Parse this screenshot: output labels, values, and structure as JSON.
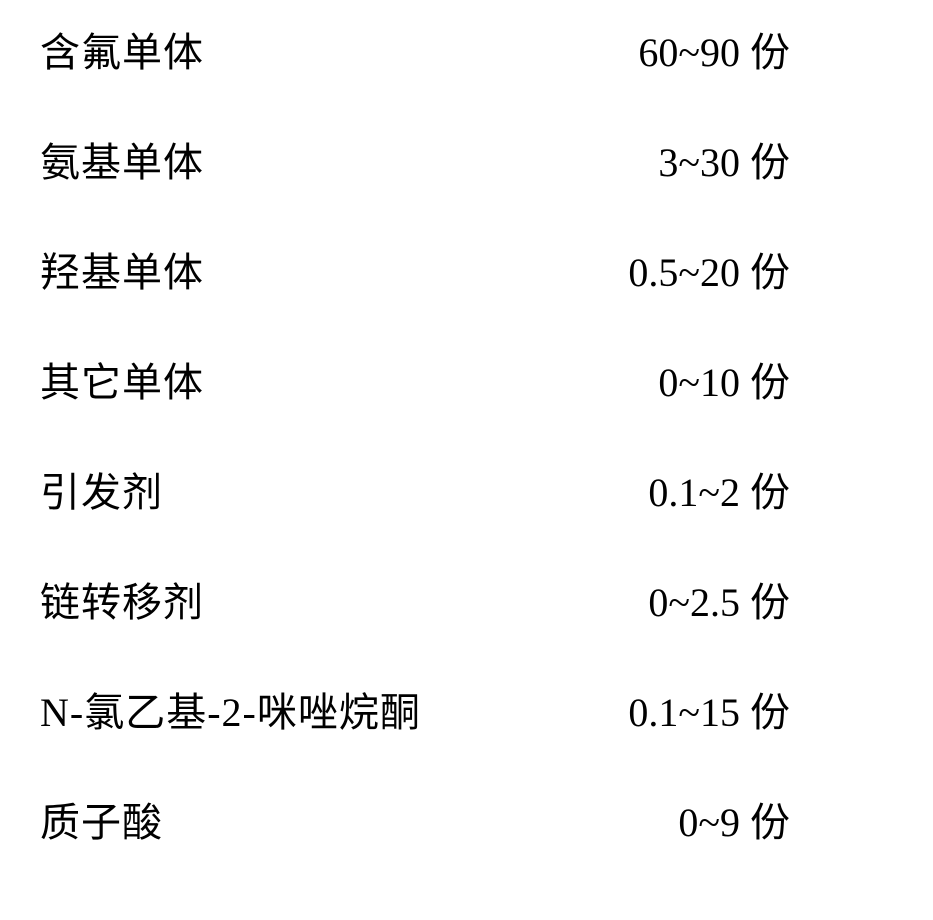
{
  "table": {
    "text_color": "#000000",
    "background_color": "#ffffff",
    "font_size_pt": 30,
    "font_family": "SimSun",
    "unit": "份",
    "rows": [
      {
        "label": "含氟单体",
        "value": "60~90"
      },
      {
        "label": "氨基单体",
        "value": "3~30"
      },
      {
        "label": "羟基单体",
        "value": "0.5~20"
      },
      {
        "label": "其它单体",
        "value": "0~10"
      },
      {
        "label": "引发剂",
        "value": "0.1~2"
      },
      {
        "label": "链转移剂",
        "value": "0~2.5"
      },
      {
        "label": "N-氯乙基-2-咪唑烷酮",
        "value": "0.1~15"
      },
      {
        "label": "质子酸",
        "value": "0~9"
      }
    ]
  }
}
